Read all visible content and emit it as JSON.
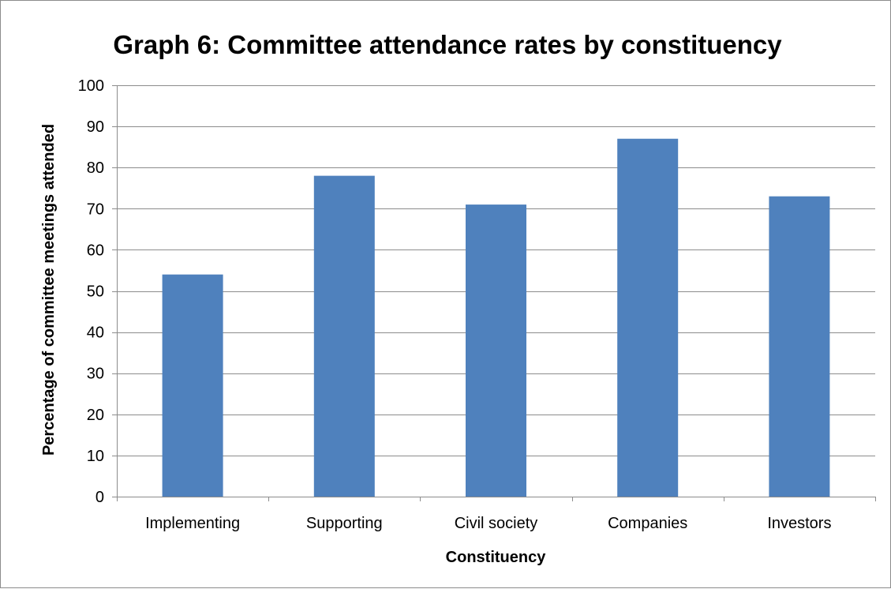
{
  "chart_data": {
    "type": "bar",
    "title": "Graph 6: Committee attendance rates by constituency",
    "xlabel": "Constituency",
    "ylabel": "Percentage of committee meetings attended",
    "categories": [
      "Implementing",
      "Supporting",
      "Civil society",
      "Companies",
      "Investors"
    ],
    "values": [
      54,
      78,
      71,
      87,
      73
    ],
    "ylim": [
      0,
      100
    ],
    "yticks": [
      "0",
      "10",
      "20",
      "30",
      "40",
      "50",
      "60",
      "70",
      "80",
      "90",
      "100"
    ],
    "grid": true,
    "legend": "none",
    "bar_color": "#4f81bd",
    "grid_color": "#8c8c8c"
  }
}
